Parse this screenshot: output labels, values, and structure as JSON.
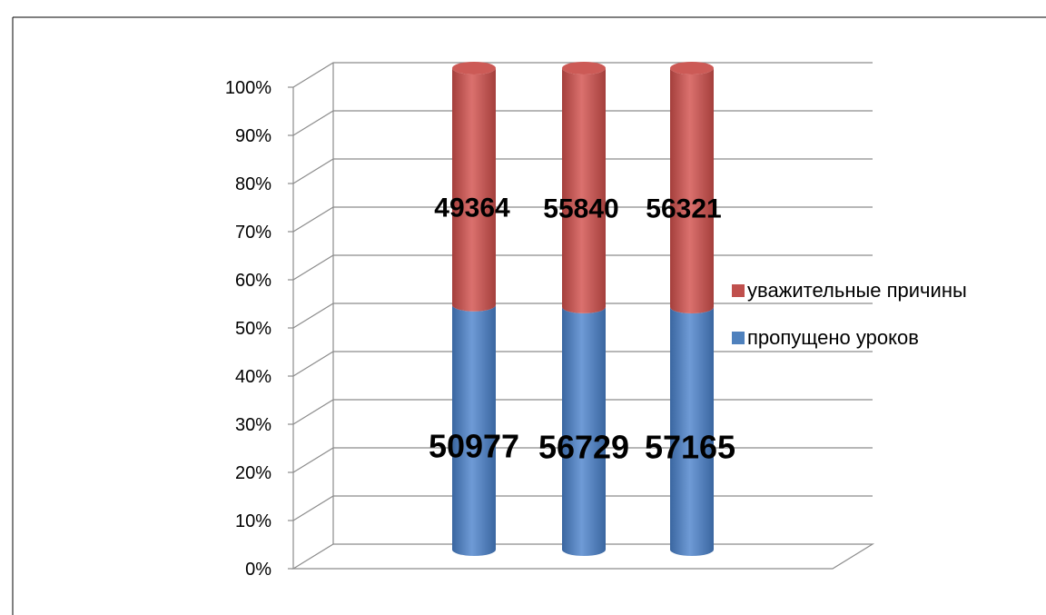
{
  "chart_data": {
    "type": "bar",
    "stacked": "100%",
    "style": "3d-cylinder",
    "categories": [
      "",
      "",
      ""
    ],
    "series": [
      {
        "name": "пропущено уроков",
        "values": [
          50977,
          56729,
          57165
        ],
        "color": "#4F81BD"
      },
      {
        "name": "уважительные причины",
        "values": [
          49364,
          55840,
          56321
        ],
        "color": "#C0504D"
      }
    ],
    "ylim": [
      0,
      100
    ],
    "yticks": [
      "0%",
      "10%",
      "20%",
      "30%",
      "40%",
      "50%",
      "60%",
      "70%",
      "80%",
      "90%",
      "100%"
    ],
    "grid": true,
    "legend_position": "right"
  }
}
